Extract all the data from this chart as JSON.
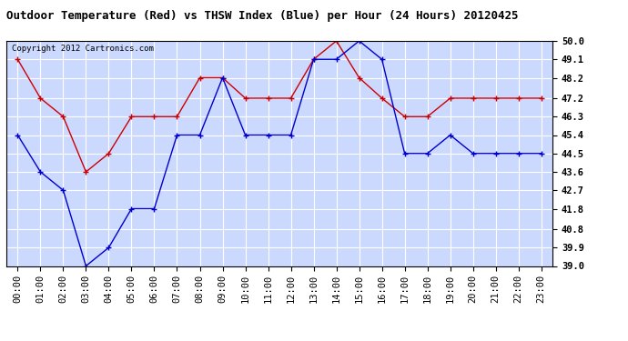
{
  "title": "Outdoor Temperature (Red) vs THSW Index (Blue) per Hour (24 Hours) 20120425",
  "copyright_text": "Copyright 2012 Cartronics.com",
  "hours": [
    "00:00",
    "01:00",
    "02:00",
    "03:00",
    "04:00",
    "05:00",
    "06:00",
    "07:00",
    "08:00",
    "09:00",
    "10:00",
    "11:00",
    "12:00",
    "13:00",
    "14:00",
    "15:00",
    "16:00",
    "17:00",
    "18:00",
    "19:00",
    "20:00",
    "21:00",
    "22:00",
    "23:00"
  ],
  "red_data": [
    49.1,
    47.2,
    46.3,
    43.6,
    44.5,
    46.3,
    46.3,
    46.3,
    48.2,
    48.2,
    47.2,
    47.2,
    47.2,
    49.1,
    50.0,
    48.2,
    47.2,
    46.3,
    46.3,
    47.2,
    47.2,
    47.2,
    47.2,
    47.2
  ],
  "blue_data": [
    45.4,
    43.6,
    42.7,
    39.0,
    39.9,
    41.8,
    41.8,
    45.4,
    45.4,
    48.2,
    45.4,
    45.4,
    45.4,
    49.1,
    49.1,
    50.0,
    49.1,
    44.5,
    44.5,
    45.4,
    44.5,
    44.5,
    44.5,
    44.5
  ],
  "ylim_min": 39.0,
  "ylim_max": 50.0,
  "yticks": [
    39.0,
    39.9,
    40.8,
    41.8,
    42.7,
    43.6,
    44.5,
    45.4,
    46.3,
    47.2,
    48.2,
    49.1,
    50.0
  ],
  "red_color": "#cc0000",
  "blue_color": "#0000cc",
  "plot_bg": "#ccd9ff",
  "grid_color": "#ffffff",
  "outer_bg": "#ffffff",
  "title_fontsize": 9,
  "copyright_fontsize": 6.5,
  "tick_fontsize": 7.5,
  "marker": "+"
}
